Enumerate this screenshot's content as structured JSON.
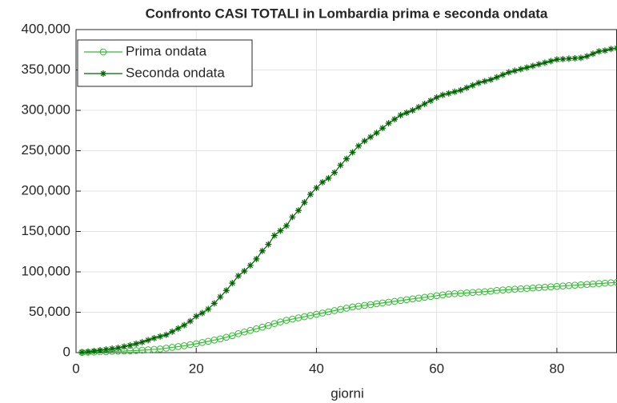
{
  "chart_data": {
    "type": "line",
    "title": "Confronto CASI TOTALI in Lombardia prima e seconda ondata",
    "xlabel": "giorni",
    "x": [
      1,
      2,
      3,
      4,
      5,
      6,
      7,
      8,
      9,
      10,
      11,
      12,
      13,
      14,
      15,
      16,
      17,
      18,
      19,
      20,
      21,
      22,
      23,
      24,
      25,
      26,
      27,
      28,
      29,
      30,
      31,
      32,
      33,
      34,
      35,
      36,
      37,
      38,
      39,
      40,
      41,
      42,
      43,
      44,
      45,
      46,
      47,
      48,
      49,
      50,
      51,
      52,
      53,
      54,
      55,
      56,
      57,
      58,
      59,
      60,
      61,
      62,
      63,
      64,
      65,
      66,
      67,
      68,
      69,
      70,
      71,
      72,
      73,
      74,
      75,
      76,
      77,
      78,
      79,
      80,
      81,
      82,
      83,
      84,
      85,
      86,
      87,
      88,
      89,
      90
    ],
    "series": [
      {
        "name": "Prima ondata",
        "color": "#33bb33",
        "marker": "circle",
        "values": [
          300,
          500,
          700,
          1000,
          1200,
          1500,
          1800,
          2000,
          2300,
          2600,
          3000,
          3500,
          4000,
          4500,
          5500,
          6500,
          7500,
          8500,
          9800,
          11000,
          12500,
          14000,
          15500,
          17000,
          19000,
          21000,
          23500,
          25500,
          27500,
          29500,
          31500,
          33500,
          36000,
          38000,
          40000,
          41500,
          43000,
          44500,
          46000,
          47500,
          49000,
          50500,
          52000,
          53500,
          55000,
          56500,
          57500,
          58500,
          59500,
          60500,
          61500,
          62500,
          63500,
          64500,
          65500,
          66500,
          67500,
          68500,
          69500,
          70500,
          71500,
          72500,
          73000,
          73500,
          74000,
          74500,
          75000,
          75500,
          76000,
          77000,
          77500,
          78000,
          78500,
          79000,
          79500,
          80000,
          80500,
          81000,
          81500,
          82000,
          82500,
          83000,
          83500,
          84000,
          84500,
          85000,
          85500,
          86000,
          86500,
          87000
        ]
      },
      {
        "name": "Seconda ondata",
        "color": "#006400",
        "marker": "asterisk",
        "values": [
          500,
          1000,
          2000,
          3000,
          4000,
          5000,
          6000,
          7500,
          9000,
          11000,
          13000,
          15500,
          18000,
          20000,
          22000,
          26000,
          30000,
          34000,
          39000,
          45000,
          49000,
          54000,
          61000,
          69000,
          77000,
          86000,
          95000,
          101000,
          108000,
          116000,
          126000,
          134000,
          145000,
          151000,
          157000,
          168000,
          176000,
          186000,
          196000,
          204000,
          211000,
          216000,
          223000,
          232000,
          240000,
          248000,
          256000,
          262000,
          267000,
          272000,
          278000,
          284000,
          289000,
          294000,
          297000,
          300000,
          304000,
          308000,
          312000,
          316000,
          319000,
          321000,
          323000,
          325000,
          328000,
          331000,
          334000,
          336000,
          338000,
          341000,
          344000,
          347000,
          349000,
          351000,
          353000,
          355000,
          357000,
          359000,
          361000,
          363000,
          363500,
          364000,
          364500,
          365000,
          367000,
          370000,
          373000,
          374000,
          376000,
          377000
        ]
      }
    ],
    "xlim": [
      0,
      90
    ],
    "xticks": [
      0,
      20,
      40,
      60,
      80
    ],
    "ylim": [
      0,
      400000
    ],
    "yticks": [
      0,
      {
        "value": 50000,
        "label": "50,000"
      },
      {
        "value": 100000,
        "label": "100,000"
      },
      {
        "value": 150000,
        "label": "150,000"
      },
      {
        "value": 200000,
        "label": "200,000"
      },
      {
        "value": 250000,
        "label": "250,000"
      },
      {
        "value": 300000,
        "label": "300,000"
      },
      {
        "value": 350000,
        "label": "350,000"
      },
      {
        "value": 400000,
        "label": "400,000"
      }
    ],
    "grid": true,
    "legend": "northwest"
  }
}
